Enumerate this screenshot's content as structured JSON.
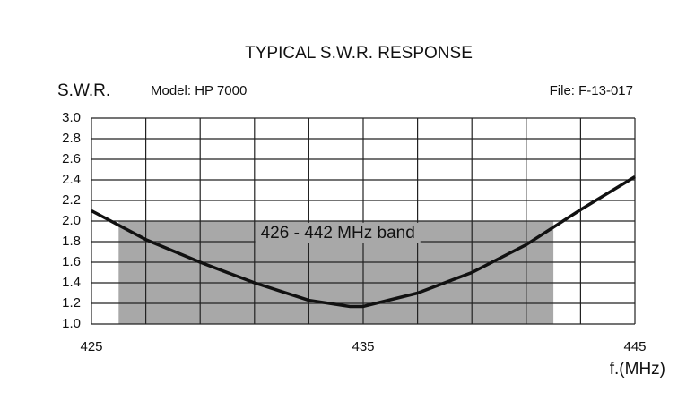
{
  "chart_data": {
    "type": "line",
    "title": "TYPICAL S.W.R. RESPONSE",
    "y_label": "S.W.R.",
    "model": "Model:  HP 7000",
    "file": "File:  F-13-017",
    "x_label": "f.(MHz)",
    "x": [
      425,
      427,
      429,
      431,
      433,
      434.5,
      435,
      437,
      439,
      441,
      443,
      445
    ],
    "series": [
      {
        "name": "SWR",
        "color": "#111111",
        "values": [
          2.1,
          1.82,
          1.6,
          1.4,
          1.23,
          1.17,
          1.17,
          1.3,
          1.5,
          1.77,
          2.11,
          2.43
        ]
      }
    ],
    "xlim": [
      425,
      445
    ],
    "xticks": [
      425,
      435,
      445
    ],
    "xgrid": [
      425,
      427,
      429,
      431,
      433,
      435,
      437,
      439,
      441,
      443,
      445
    ],
    "ylim": [
      1,
      3
    ],
    "yticks": [
      {
        "value": 1,
        "label": "1.0"
      },
      {
        "value": 1.2,
        "label": "1.2"
      },
      {
        "value": 1.4,
        "label": "1.4"
      },
      {
        "value": 1.6,
        "label": "1.6"
      },
      {
        "value": 1.8,
        "label": "1.8"
      },
      {
        "value": 2,
        "label": "2.0"
      },
      {
        "value": 2.2,
        "label": "2.2"
      },
      {
        "value": 2.4,
        "label": "2.4"
      },
      {
        "value": 2.6,
        "label": "2.6"
      },
      {
        "value": 2.8,
        "label": "2.8"
      },
      {
        "value": 3,
        "label": "3.0"
      }
    ],
    "grid": true,
    "band": {
      "label": "426 - 442 MHz band",
      "xlim": [
        426,
        442
      ],
      "ylim": [
        1,
        2
      ],
      "color": "#a8a8a8"
    }
  }
}
